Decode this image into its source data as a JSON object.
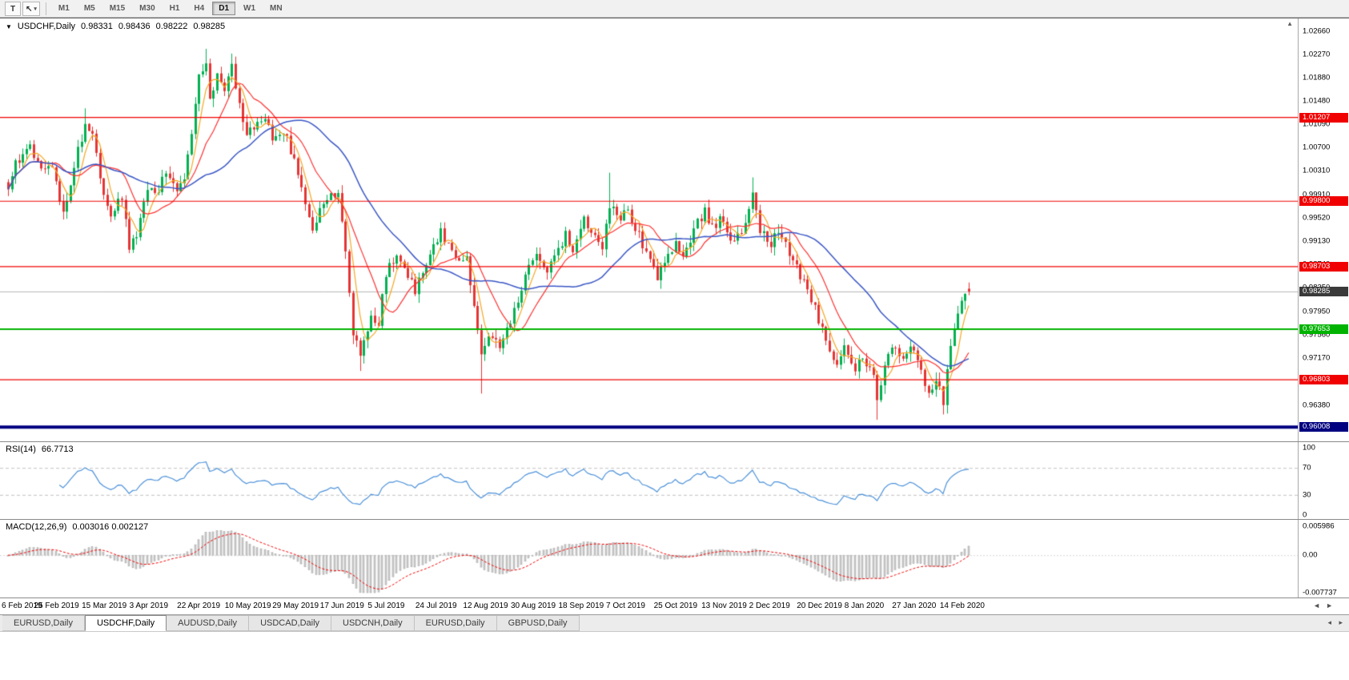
{
  "icons": {
    "dropdown_caret": "▾",
    "symbol_dropdown": "▼",
    "scroll_up": "▲",
    "scroll_left": "◄",
    "scroll_right": "►",
    "tab_scroll_left": "◂",
    "tab_scroll_right": "▸"
  },
  "toolbar": {
    "tool_buttons": [
      {
        "id": "text-tool",
        "label": "T"
      },
      {
        "id": "pointer-tool",
        "label": "↖"
      }
    ],
    "timeframes": [
      "M1",
      "M5",
      "M15",
      "M30",
      "H1",
      "H4",
      "D1",
      "W1",
      "MN"
    ],
    "active_timeframe": "D1"
  },
  "chart": {
    "symbol_label": "USDCHF,Daily",
    "ohlc": {
      "open": "0.98331",
      "high": "0.98436",
      "low": "0.98222",
      "close": "0.98285"
    },
    "current_price": "0.98285",
    "price_axis_ticks": [
      "1.02660",
      "1.02270",
      "1.01880",
      "1.01480",
      "1.01090",
      "1.00700",
      "1.00310",
      "0.99910",
      "0.99520",
      "0.99130",
      "0.98740",
      "0.98350",
      "0.97950",
      "0.97560",
      "0.97170",
      "0.96780",
      "0.96380",
      "0.95990"
    ],
    "levels": [
      {
        "value": "1.01207",
        "color": "#f00000",
        "width": 1.2,
        "kind": "resistance"
      },
      {
        "value": "0.99800",
        "color": "#f00000",
        "width": 1.2,
        "kind": "resistance"
      },
      {
        "value": "0.98703",
        "color": "#f00000",
        "width": 1.2,
        "kind": "resistance"
      },
      {
        "value": "0.96803",
        "color": "#f00000",
        "width": 1.2,
        "kind": "support"
      },
      {
        "value": "0.97653",
        "color": "#00b300",
        "width": 2,
        "kind": "support"
      },
      {
        "value": "0.96008",
        "color": "#000080",
        "width": 4,
        "kind": "support"
      }
    ],
    "date_labels": [
      "6 Feb 2019",
      "25 Feb 2019",
      "15 Mar 2019",
      "3 Apr 2019",
      "22 Apr 2019",
      "10 May 2019",
      "29 May 2019",
      "17 Jun 2019",
      "5 Jul 2019",
      "24 Jul 2019",
      "12 Aug 2019",
      "30 Aug 2019",
      "18 Sep 2019",
      "7 Oct 2019",
      "25 Oct 2019",
      "13 Nov 2019",
      "2 Dec 2019",
      "20 Dec 2019",
      "8 Jan 2020",
      "27 Jan 2020",
      "14 Feb 2020"
    ]
  },
  "rsi": {
    "name": "RSI(14)",
    "value": "66.7713",
    "ticks": [
      "100",
      "70",
      "30",
      "0"
    ],
    "levels": [
      70,
      30
    ]
  },
  "macd": {
    "name": "MACD(12,26,9)",
    "value": "0.003016 0.002127",
    "ticks": [
      "0.005986",
      "0.00",
      "-0.007737"
    ]
  },
  "tabs": [
    {
      "label": "EURUSD,Daily",
      "active": false
    },
    {
      "label": "USDCHF,Daily",
      "active": true
    },
    {
      "label": "AUDUSD,Daily",
      "active": false
    },
    {
      "label": "USDCAD,Daily",
      "active": false
    },
    {
      "label": "USDCNH,Daily",
      "active": false
    },
    {
      "label": "EURUSD,Daily",
      "active": false
    },
    {
      "label": "GBPUSD,Daily",
      "active": false
    }
  ],
  "colors": {
    "up_candle": "#00b050",
    "down_candle": "#e53535",
    "ma_fast": "#f5a623",
    "ma_mid": "#ff3030",
    "ma_slow": "#3a56c5",
    "rsi_line": "#4a90d9",
    "rsi_level_dash": "#c0c0c0",
    "macd_histogram": "#c9c9c9",
    "macd_signal": "#f00000",
    "current_price_line": "#b4b4b4",
    "current_price_badge": "#3a3a3a"
  },
  "chart_data": {
    "type": "candlestick",
    "symbol": "USDCHF",
    "timeframe": "Daily",
    "x_range": [
      "6 Feb 2019",
      "14 Feb 2020"
    ],
    "y_range": [
      0.9574,
      1.0287
    ],
    "bars": 263,
    "last_candle": {
      "open": 0.98331,
      "high": 0.98436,
      "low": 0.98222,
      "close": 0.98285
    },
    "price_anchors": [
      [
        0,
        1.0005
      ],
      [
        2,
        1.0042
      ],
      [
        4,
        1.0058
      ],
      [
        6,
        1.0072
      ],
      [
        9,
        1.003
      ],
      [
        12,
        1.0038
      ],
      [
        15,
        0.9962
      ],
      [
        17,
        1.0008
      ],
      [
        19,
        1.0075
      ],
      [
        21,
        1.0102
      ],
      [
        23,
        1.0088
      ],
      [
        26,
        0.9988
      ],
      [
        28,
        0.9962
      ],
      [
        31,
        0.9983
      ],
      [
        33,
        0.9905
      ],
      [
        35,
        0.9918
      ],
      [
        38,
        1.0002
      ],
      [
        40,
        0.9992
      ],
      [
        43,
        1.0024
      ],
      [
        46,
        0.9996
      ],
      [
        48,
        1.002
      ],
      [
        50,
        1.0085
      ],
      [
        52,
        1.0185
      ],
      [
        54,
        1.0212
      ],
      [
        55,
        1.015
      ],
      [
        57,
        1.0192
      ],
      [
        59,
        1.0158
      ],
      [
        61,
        1.0205
      ],
      [
        63,
        1.0142
      ],
      [
        65,
        1.0092
      ],
      [
        68,
        1.0112
      ],
      [
        70,
        1.0126
      ],
      [
        72,
        1.0082
      ],
      [
        75,
        1.0096
      ],
      [
        78,
        1.0052
      ],
      [
        80,
        1.0002
      ],
      [
        83,
        0.9928
      ],
      [
        85,
        0.9962
      ],
      [
        88,
        0.9986
      ],
      [
        90,
        0.9996
      ],
      [
        92,
        0.99
      ],
      [
        94,
        0.9762
      ],
      [
        96,
        0.9722
      ],
      [
        97,
        0.9748
      ],
      [
        99,
        0.9792
      ],
      [
        101,
        0.9776
      ],
      [
        103,
        0.9856
      ],
      [
        106,
        0.9892
      ],
      [
        108,
        0.9862
      ],
      [
        111,
        0.9832
      ],
      [
        114,
        0.9866
      ],
      [
        116,
        0.9902
      ],
      [
        118,
        0.9926
      ],
      [
        121,
        0.9906
      ],
      [
        123,
        0.9872
      ],
      [
        125,
        0.9892
      ],
      [
        127,
        0.9802
      ],
      [
        129,
        0.9722
      ],
      [
        131,
        0.9762
      ],
      [
        134,
        0.9736
      ],
      [
        136,
        0.9772
      ],
      [
        139,
        0.9802
      ],
      [
        141,
        0.9862
      ],
      [
        144,
        0.9896
      ],
      [
        147,
        0.9856
      ],
      [
        149,
        0.9886
      ],
      [
        152,
        0.9922
      ],
      [
        154,
        0.9896
      ],
      [
        157,
        0.9952
      ],
      [
        160,
        0.9922
      ],
      [
        162,
        0.9896
      ],
      [
        164,
        0.9976
      ],
      [
        166,
        0.9952
      ],
      [
        169,
        0.9966
      ],
      [
        171,
        0.9936
      ],
      [
        174,
        0.9896
      ],
      [
        177,
        0.9856
      ],
      [
        179,
        0.9882
      ],
      [
        182,
        0.9912
      ],
      [
        184,
        0.9882
      ],
      [
        187,
        0.9932
      ],
      [
        190,
        0.9966
      ],
      [
        192,
        0.9936
      ],
      [
        195,
        0.9952
      ],
      [
        197,
        0.9906
      ],
      [
        200,
        0.9932
      ],
      [
        203,
        0.9992
      ],
      [
        205,
        0.9932
      ],
      [
        208,
        0.9906
      ],
      [
        210,
        0.9932
      ],
      [
        213,
        0.9892
      ],
      [
        216,
        0.9856
      ],
      [
        218,
        0.9832
      ],
      [
        221,
        0.9782
      ],
      [
        223,
        0.9742
      ],
      [
        226,
        0.9702
      ],
      [
        228,
        0.9736
      ],
      [
        231,
        0.9692
      ],
      [
        233,
        0.9722
      ],
      [
        236,
        0.9682
      ],
      [
        237,
        0.9645
      ],
      [
        239,
        0.9702
      ],
      [
        241,
        0.9732
      ],
      [
        244,
        0.9712
      ],
      [
        246,
        0.9742
      ],
      [
        249,
        0.9702
      ],
      [
        251,
        0.9655
      ],
      [
        253,
        0.9682
      ],
      [
        255,
        0.9645
      ],
      [
        256,
        0.9692
      ],
      [
        257,
        0.9735
      ],
      [
        258,
        0.9768
      ],
      [
        259,
        0.9795
      ],
      [
        260,
        0.9815
      ],
      [
        261,
        0.9832
      ],
      [
        262,
        0.98285
      ]
    ],
    "spike_lows": [
      {
        "index": 96,
        "low": 0.9695
      },
      {
        "index": 129,
        "low": 0.9657
      },
      {
        "index": 237,
        "low": 0.9613
      },
      {
        "index": 255,
        "low": 0.9622
      }
    ],
    "spike_highs": [
      {
        "index": 21,
        "high": 1.0136
      },
      {
        "index": 54,
        "high": 1.0236
      },
      {
        "index": 61,
        "high": 1.0228
      },
      {
        "index": 164,
        "high": 1.0028
      },
      {
        "index": 203,
        "high": 1.002
      }
    ],
    "moving_averages": [
      {
        "period": 5,
        "color_key": "ma_fast"
      },
      {
        "period": 13,
        "color_key": "ma_mid"
      },
      {
        "period": 34,
        "color_key": "ma_slow"
      }
    ],
    "indicators": [
      {
        "type": "rsi",
        "period": 14,
        "current": 66.7713,
        "scale": [
          0,
          100
        ],
        "levels": [
          70,
          30
        ]
      },
      {
        "type": "macd",
        "fast": 12,
        "slow": 26,
        "signal": 9,
        "current_macd": 0.003016,
        "current_signal": 0.002127,
        "scale": [
          -0.007737,
          0.005986
        ]
      }
    ]
  }
}
